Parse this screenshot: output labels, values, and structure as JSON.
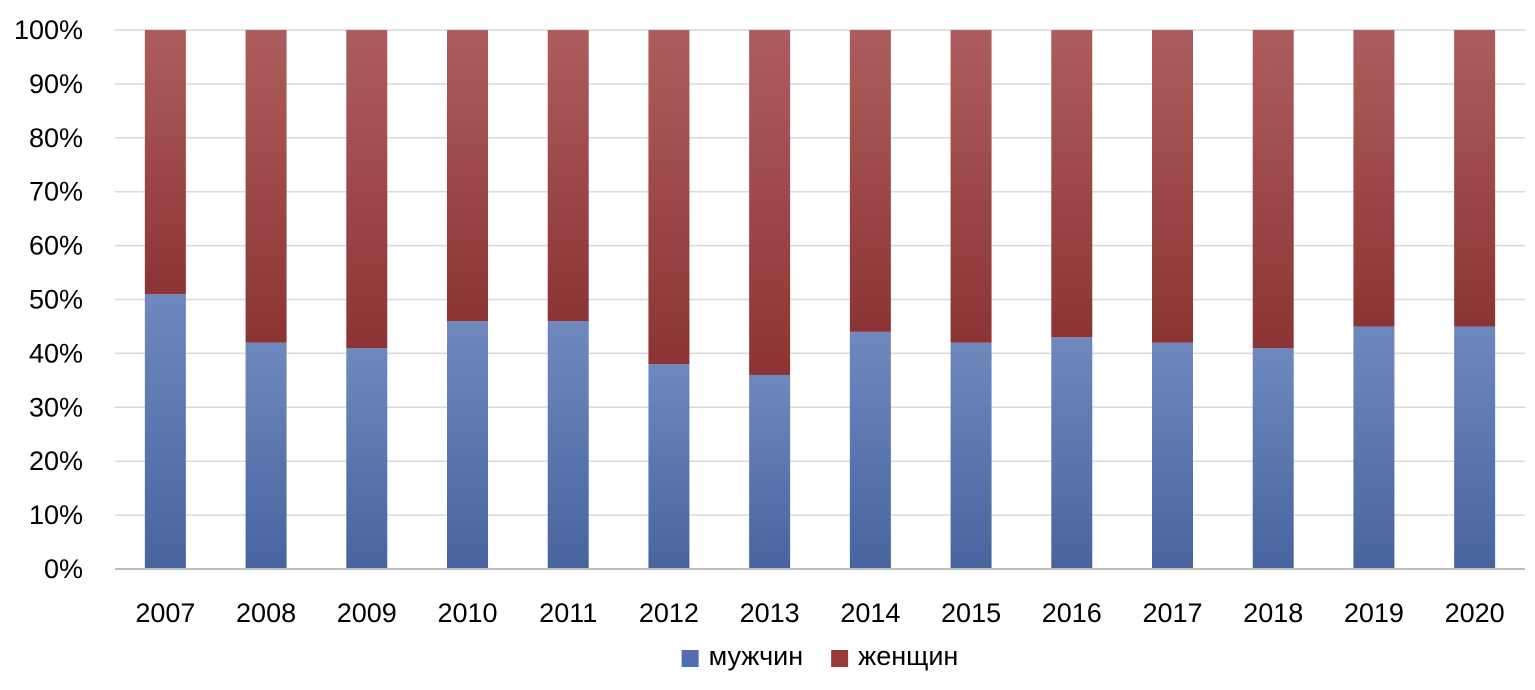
{
  "chart_data": {
    "type": "bar",
    "stacked": true,
    "percent_stacked": true,
    "categories": [
      "2007",
      "2008",
      "2009",
      "2010",
      "2011",
      "2012",
      "2013",
      "2014",
      "2015",
      "2016",
      "2017",
      "2018",
      "2019",
      "2020"
    ],
    "series": [
      {
        "name": "мужчин",
        "color": "#4f6fb0",
        "values": [
          51,
          42,
          41,
          46,
          46,
          38,
          36,
          44,
          42,
          43,
          42,
          41,
          45,
          45
        ]
      },
      {
        "name": "женщин",
        "color": "#9b3a3a",
        "values": [
          49,
          58,
          59,
          54,
          54,
          62,
          64,
          56,
          58,
          57,
          58,
          59,
          55,
          55
        ]
      }
    ],
    "ylim": [
      0,
      100
    ],
    "yticks": [
      "0%",
      "10%",
      "20%",
      "30%",
      "40%",
      "50%",
      "60%",
      "70%",
      "80%",
      "90%",
      "100%"
    ],
    "title": "",
    "xlabel": "",
    "ylabel": "",
    "grid": true,
    "legend": "bottom"
  }
}
